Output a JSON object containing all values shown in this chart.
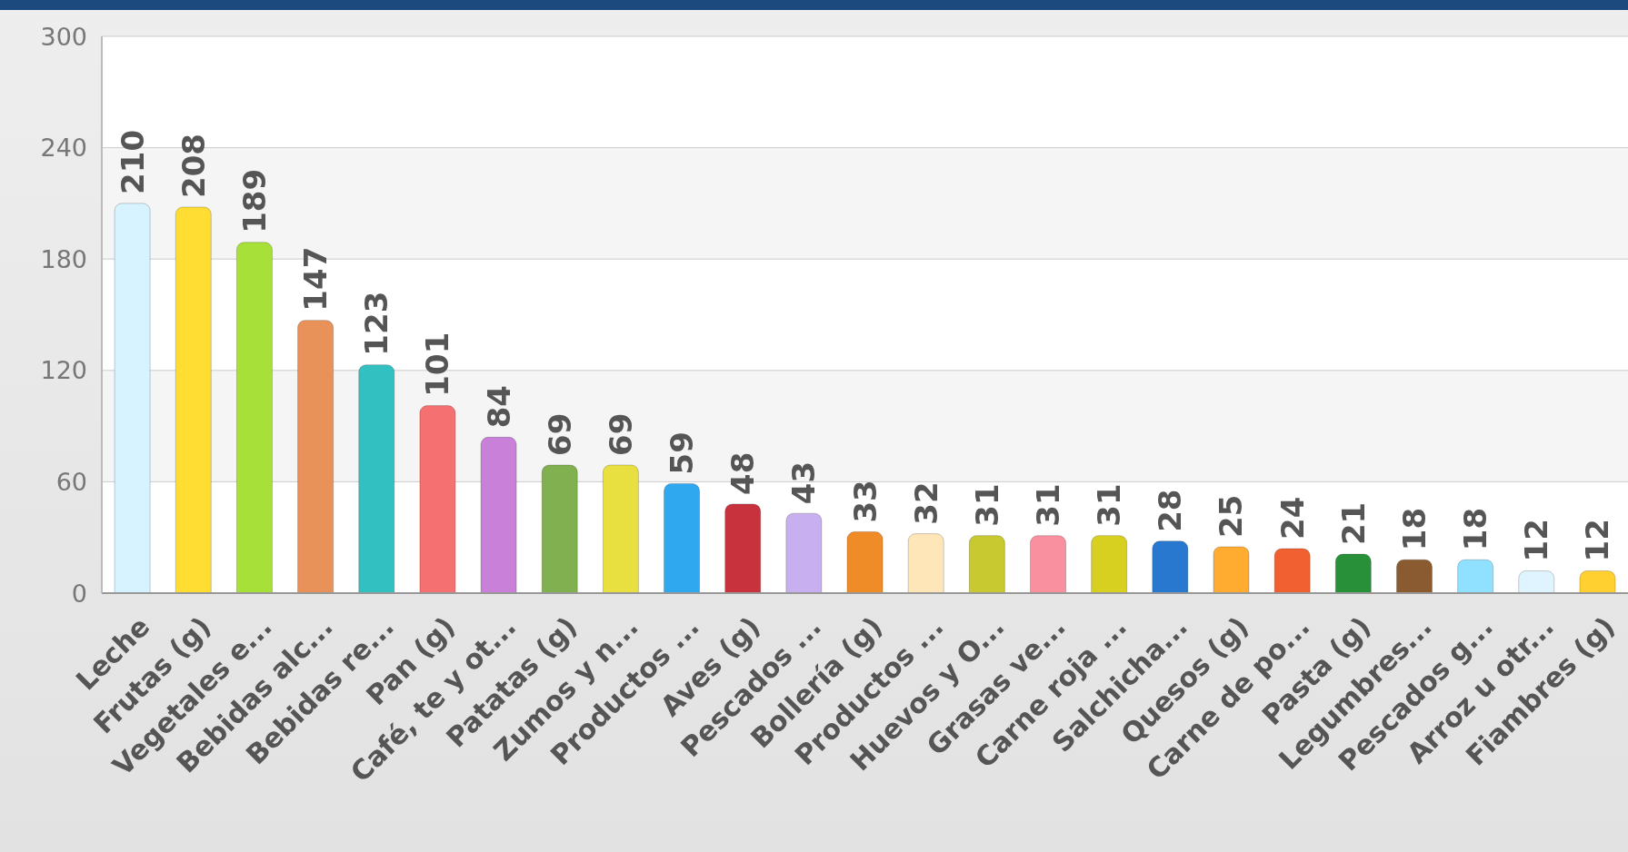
{
  "chart_data": {
    "type": "bar",
    "categories": [
      "Leche",
      "Frutas (g)",
      "Vegetales e...",
      "Bebidas alc...",
      "Bebidas re...",
      "Pan (g)",
      "Café, te y ot...",
      "Patatas (g)",
      "Zumos y n...",
      "Productos ...",
      "Aves (g)",
      "Pescados ...",
      "Bollería (g)",
      "Productos ...",
      "Huevos y O...",
      "Grasas ve...",
      "Carne roja ...",
      "Salchicha...",
      "Quesos (g)",
      "Carne de po...",
      "Pasta (g)",
      "Legumbres...",
      "Pescados g...",
      "Arroz u otr...",
      "Fiambres (g)"
    ],
    "values": [
      210,
      208,
      189,
      147,
      123,
      101,
      84,
      69,
      69,
      59,
      48,
      43,
      33,
      32,
      31,
      31,
      31,
      28,
      25,
      24,
      21,
      18,
      18,
      12,
      12
    ],
    "colors": [
      "#d6f3ff",
      "#ffdd33",
      "#a8e03a",
      "#e8925a",
      "#33c0c0",
      "#f57070",
      "#c880d8",
      "#80b050",
      "#e8e040",
      "#30a8f0",
      "#c8323c",
      "#c8b0f0",
      "#f08c28",
      "#ffe6b8",
      "#c8c830",
      "#f890a0",
      "#d8d020",
      "#2878d0",
      "#ffac30",
      "#f06030",
      "#289038",
      "#8a5a30",
      "#90e0ff",
      "#e0f4ff",
      "#ffd030"
    ],
    "ylim": [
      0,
      300
    ],
    "yticks": [
      0,
      60,
      120,
      180,
      240,
      300
    ],
    "grid": "y",
    "data_labels": true
  }
}
